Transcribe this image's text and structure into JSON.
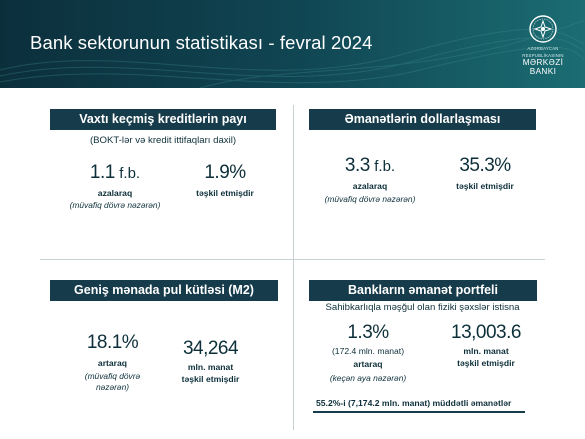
{
  "header": {
    "title": "Bank sektorunun statistikası  - fevral 2024",
    "logo": {
      "line1": "AZƏRBAYCAN",
      "line2": "RESPUBLİKASININ",
      "line3": "MƏRKƏZİ",
      "line4": "BANKI"
    }
  },
  "colors": {
    "header_dark": "#0c2f3c",
    "header_light": "#1b6d73",
    "badge": "#163b4a",
    "text": "#0d2f3a",
    "divider": "#c8d2d4"
  },
  "panel_overdue": {
    "title": "Vaxtı keçmiş kreditlərin payı",
    "subtitle": "(BOKT-lər və kredit ittifaqları daxil)",
    "left_value": "1.1",
    "left_unit": "f.b.",
    "left_label": "azalaraq",
    "left_note": "(müvafiq dövrə nəzərən)",
    "right_value": "1.9%",
    "right_label": "təşkil etmişdir"
  },
  "panel_dollarization": {
    "title": "Əmanətlərin dollarlaşması",
    "left_value": "3.3",
    "left_unit": "f.b.",
    "left_label": "azalaraq",
    "left_note": "(müvafiq dövrə nəzərən)",
    "right_value": "35.3%",
    "right_label": "təşkil etmişdir"
  },
  "panel_m2": {
    "title": "Geniş mənada pul kütləsi (M2)",
    "left_value": "18.1%",
    "left_label": "artaraq",
    "left_note_1": "(müvafiq dövrə",
    "left_note_2": "nəzərən)",
    "right_value": "34,264",
    "right_label_1": "mln. manat",
    "right_label_2": "təşkil etmişdir"
  },
  "panel_deposits": {
    "title": "Bankların əmanət portfeli",
    "subtitle": "Sahibkarlıqla məşğul olan fiziki şəxslər istisna",
    "left_value": "1.3%",
    "left_sub": "(172.4 mln. manat)",
    "left_label": "artaraq",
    "left_note": "(keçən aya nəzərən)",
    "right_value": "13,003.6",
    "right_label_1": "mln. manat",
    "right_label_2": "təşkil etmişdir",
    "footnote": "55.2%-i (7,174.2 mln. manat) müddətli əmanətlər"
  }
}
